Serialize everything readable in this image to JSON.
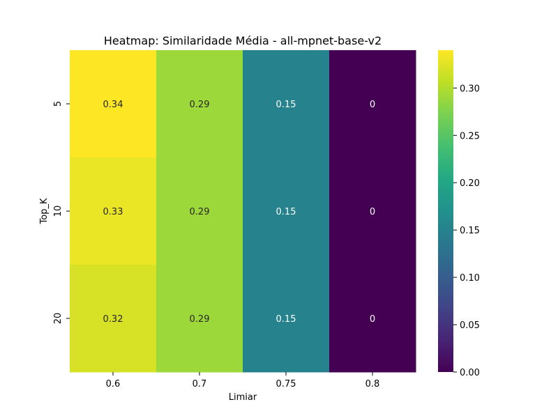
{
  "chart_data": {
    "type": "heatmap",
    "title": "Heatmap: Similaridade Média - all-mpnet-base-v2",
    "xlabel": "Limiar",
    "ylabel": "Top_K",
    "x_categories": [
      "0.6",
      "0.7",
      "0.75",
      "0.8"
    ],
    "y_categories": [
      "5",
      "10",
      "20"
    ],
    "values": [
      [
        0.34,
        0.29,
        0.15,
        0
      ],
      [
        0.33,
        0.29,
        0.15,
        0
      ],
      [
        0.32,
        0.29,
        0.15,
        0
      ]
    ],
    "cell_labels": [
      [
        "0.34",
        "0.29",
        "0.15",
        "0"
      ],
      [
        "0.33",
        "0.29",
        "0.15",
        "0"
      ],
      [
        "0.32",
        "0.29",
        "0.15",
        "0"
      ]
    ],
    "colormap": "viridis",
    "vmin": 0,
    "vmax": 0.34,
    "colorbar_ticks": [
      "0.00",
      "0.05",
      "0.10",
      "0.15",
      "0.20",
      "0.25",
      "0.30"
    ],
    "colorbar_tick_values": [
      0,
      0.05,
      0.1,
      0.15,
      0.2,
      0.25,
      0.3
    ]
  }
}
